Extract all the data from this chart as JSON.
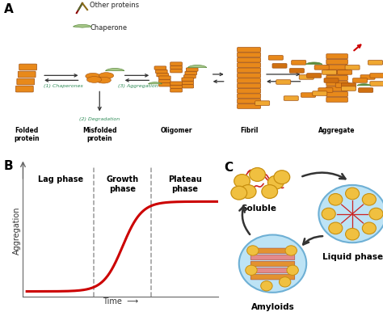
{
  "bg_color": "#FFFFFF",
  "fig_width": 4.74,
  "fig_height": 3.86,
  "dpi": 100,
  "panel_A": {
    "label": "A",
    "legend_other_color": "#8B0000",
    "legend_chaperone_color": "#6B8E23",
    "legend_other_text": "Other proteins",
    "legend_chaperone_text": "Chaperone",
    "protein_color": "#E8891A",
    "protein_edge": "#A05010",
    "chaperone_color": "#9DC88D",
    "chaperone_edge": "#4A7A4A",
    "arrow_color": "#333333",
    "label1_color": "#2E8B57",
    "label1_text": "(1) Chaperones",
    "label2_text": "(3) Aggregation",
    "label2_color": "#2E8B57",
    "label3_text": "(2) Degradation",
    "label3_color": "#2E8B57",
    "pathway_labels": [
      "Folded\nprotein",
      "Misfolded\nprotein",
      "Oligomer",
      "Fibril",
      "Aggregate"
    ],
    "label_bold": true
  },
  "panel_B": {
    "label": "B",
    "xlabel": "Time",
    "ylabel": "Aggregation",
    "phase_labels": [
      "Lag phase",
      "Growth\nphase",
      "Plateau\nphase"
    ],
    "curve_color": "#CC0000",
    "dashed_color": "#999999",
    "axis_color": "#666666"
  },
  "panel_C": {
    "label": "C",
    "circle_color": "#AED6F1",
    "circle_edge": "#6EB0D5",
    "ball_color": "#F0C040",
    "ball_edge": "#C89010",
    "fiber_color": "#CC2222",
    "amyloid_color1": "#E8891A",
    "amyloid_color2": "#E88080",
    "labels": [
      "Soluble",
      "Liquid phase",
      "Amyloids"
    ],
    "arrow_color": "#333333"
  }
}
